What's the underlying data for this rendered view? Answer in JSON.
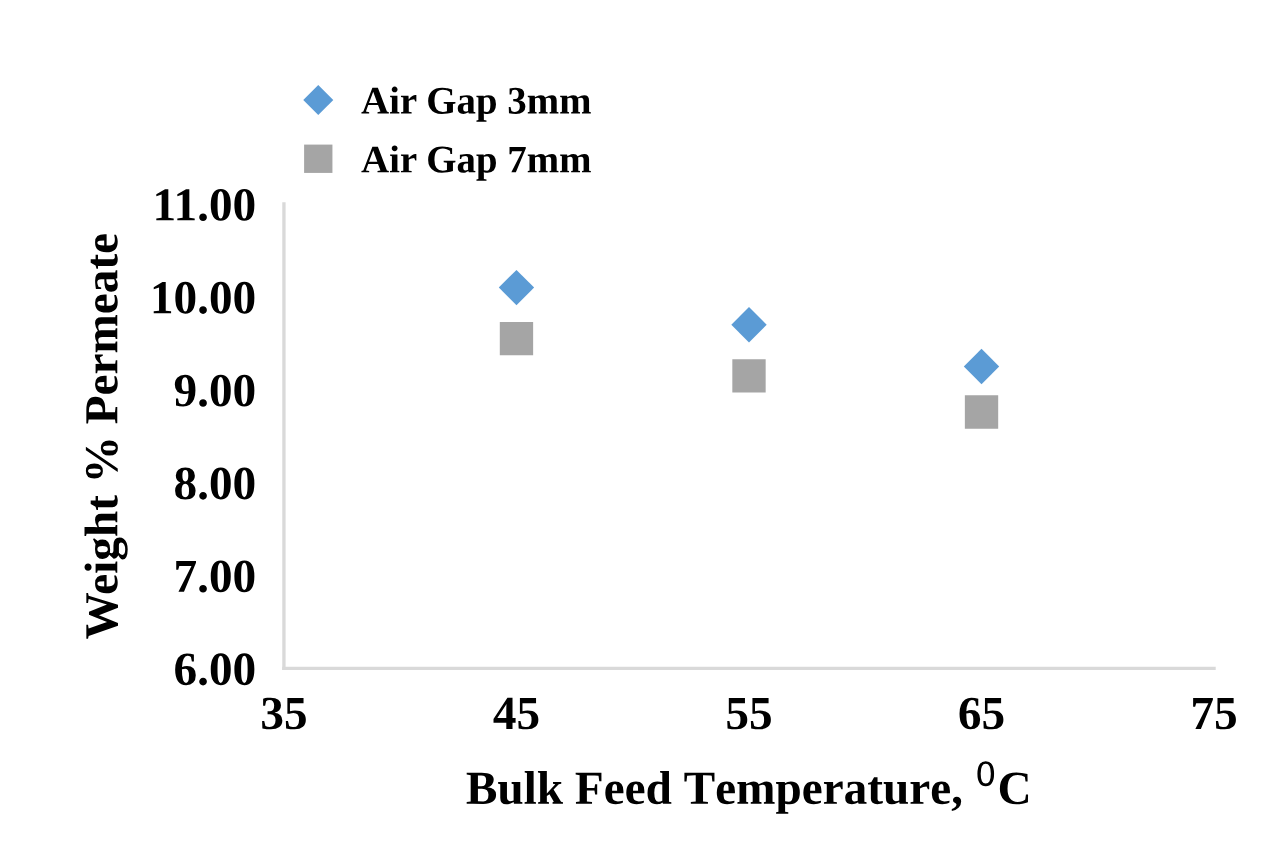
{
  "chart_data": {
    "type": "scatter",
    "xlabel": "Bulk Feed Temperature, $^{0}$C",
    "ylabel": "Weight % Permeate",
    "x": [
      45,
      55,
      65
    ],
    "series": [
      {
        "name": "Air Gap 3mm",
        "color": "#5b9bd5",
        "marker": "diamond",
        "values": [
          10.1,
          9.7,
          9.25
        ]
      },
      {
        "name": "Air Gap 7mm",
        "color": "#a5a5a5",
        "marker": "square",
        "values": [
          9.55,
          9.15,
          8.76
        ]
      }
    ],
    "xlim": [
      35,
      75
    ],
    "xticks": [
      35,
      45,
      55,
      65,
      75
    ],
    "ylim": [
      6,
      11
    ],
    "yticks": [
      {
        "value": 6,
        "label": "6.00"
      },
      {
        "value": 7,
        "label": "7.00"
      },
      {
        "value": 8,
        "label": "8.00"
      },
      {
        "value": 9,
        "label": "9.00"
      },
      {
        "value": 10,
        "label": "10.00"
      },
      {
        "value": 11,
        "label": "11.00"
      }
    ],
    "grid": false,
    "legend": "top left"
  }
}
